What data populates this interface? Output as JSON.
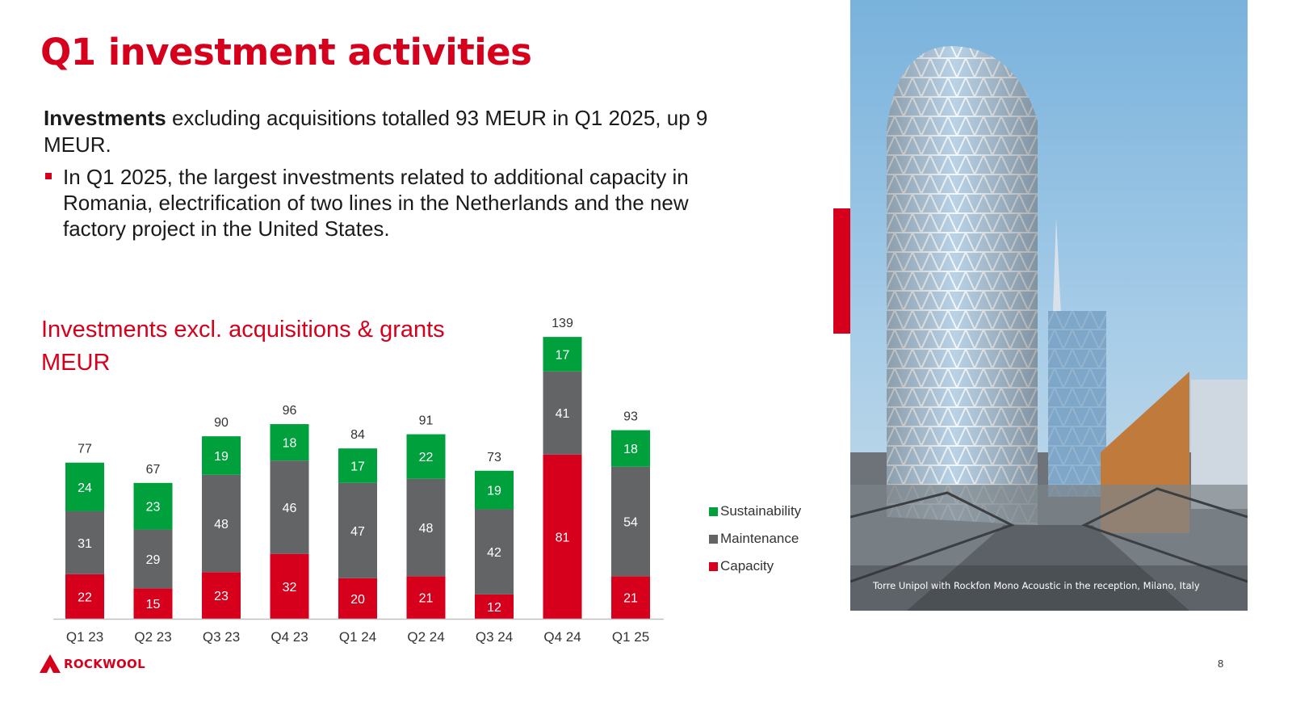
{
  "slide": {
    "title": "Q1 investment activities",
    "intro_bold": "Investments",
    "intro_rest": " excluding acquisitions totalled 93 MEUR in Q1 2025, up 9 MEUR.",
    "bullet": "In Q1 2025, the largest investments related to additional capacity in Romania, electrification of two lines in the Netherlands and the new factory project in the United States.",
    "chart_title_line1": "Investments excl. acquisitions & grants",
    "chart_title_line2": "MEUR",
    "photo_caption": "Torre Unipol with Rockfon Mono Acoustic in the reception, Milano, Italy",
    "logo_text": "ROCKWOOL",
    "page_number": "8"
  },
  "chart_data": {
    "type": "bar",
    "stacked": true,
    "title": "Investments excl. acquisitions & grants",
    "ylabel": "MEUR",
    "categories": [
      "Q1 23",
      "Q2 23",
      "Q3 23",
      "Q4 23",
      "Q1 24",
      "Q2 24",
      "Q3 24",
      "Q4 24",
      "Q1 25"
    ],
    "totals": [
      77,
      67,
      90,
      96,
      84,
      91,
      73,
      139,
      93
    ],
    "series": [
      {
        "name": "Capacity",
        "color": "#d6001c",
        "label_color": "#ffffff",
        "values": [
          22,
          15,
          23,
          32,
          20,
          21,
          12,
          81,
          21
        ]
      },
      {
        "name": "Maintenance",
        "color": "#636466",
        "label_color": "#ffffff",
        "values": [
          31,
          29,
          48,
          46,
          47,
          48,
          42,
          41,
          54
        ]
      },
      {
        "name": "Sustainability",
        "color": "#00a03c",
        "label_color": "#ffffff",
        "values": [
          24,
          23,
          19,
          18,
          17,
          22,
          19,
          17,
          18
        ]
      }
    ],
    "legend": {
      "position": "right",
      "order": [
        "Sustainability",
        "Maintenance",
        "Capacity"
      ]
    },
    "grid": false,
    "ylim": [
      0,
      139
    ]
  }
}
